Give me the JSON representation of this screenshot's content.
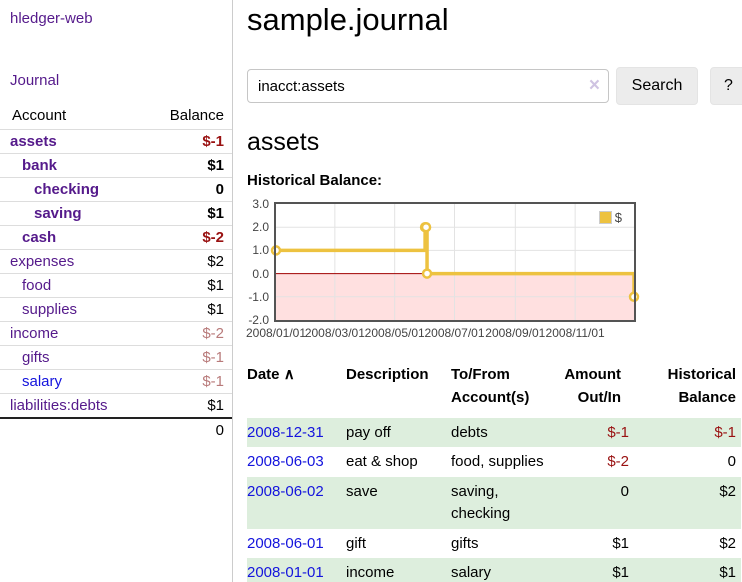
{
  "app": {
    "title": "hledger-web"
  },
  "colors": {
    "link_purple": "#551a8b",
    "link_blue": "#1414dd",
    "negative_strong": "#991111",
    "negative_soft": "#b87a7a",
    "row_stripe_green": "#ddeedd",
    "series_yellow": "#edc240"
  },
  "sidebar": {
    "journal_label": "Journal",
    "accounts_table": {
      "headers": {
        "account": "Account",
        "balance": "Balance"
      },
      "rows": [
        {
          "name": "assets",
          "balance": "$-1"
        },
        {
          "name": "bank",
          "balance": "$1"
        },
        {
          "name": "checking",
          "balance": "0"
        },
        {
          "name": "saving",
          "balance": "$1"
        },
        {
          "name": "cash",
          "balance": "$-2"
        },
        {
          "name": "expenses",
          "balance": "$2"
        },
        {
          "name": "food",
          "balance": "$1"
        },
        {
          "name": "supplies",
          "balance": "$1"
        },
        {
          "name": "income",
          "balance": "$-2"
        },
        {
          "name": "gifts",
          "balance": "$-1"
        },
        {
          "name": "salary",
          "balance": "$-1"
        },
        {
          "name": "liabilities:debts",
          "balance": "$1"
        }
      ],
      "total": "0"
    }
  },
  "main": {
    "title": "sample.journal",
    "search": {
      "value": "inacct:assets",
      "clear_icon": "×",
      "button_label": "Search",
      "help_label": "?"
    },
    "account_heading": "assets",
    "chart_heading": "Historical Balance:"
  },
  "chart_data": {
    "type": "line",
    "step": true,
    "title": "Historical Balance:",
    "series": [
      {
        "name": "$",
        "color": "#edc240",
        "points": [
          {
            "x": "2008-01-01",
            "y": 1
          },
          {
            "x": "2008-06-01",
            "y": 2
          },
          {
            "x": "2008-06-02",
            "y": 2
          },
          {
            "x": "2008-06-03",
            "y": 0
          },
          {
            "x": "2008-12-31",
            "y": -1
          }
        ]
      }
    ],
    "xlim": [
      "2008-01-01",
      "2008-12-31"
    ],
    "ylim": [
      -2,
      3
    ],
    "x_ticks": [
      "2008/01/01",
      "2008/03/01",
      "2008/05/01",
      "2008/07/01",
      "2008/09/01",
      "2008/11/01"
    ],
    "y_ticks": [
      3.0,
      2.0,
      1.0,
      0.0,
      -1.0,
      -2.0
    ],
    "grid": true,
    "legend_position": "top-right",
    "negative_region_color": "#ffe0e0",
    "zero_line_color": "#a00000"
  },
  "register_table": {
    "headers": {
      "date": "Date",
      "description": "Description",
      "account": "To/From\nAccount(s)",
      "amount": "Amount\nOut/In",
      "balance": "Historical\nBalance"
    },
    "sort_icon": "∧",
    "rows": [
      {
        "date": "2008-12-31",
        "description": "pay off",
        "accounts": "debts",
        "amount": "$-1",
        "balance": "$-1"
      },
      {
        "date": "2008-06-03",
        "description": "eat & shop",
        "accounts": "food, supplies",
        "amount": "$-2",
        "balance": "0"
      },
      {
        "date": "2008-06-02",
        "description": "save",
        "accounts": "saving,\nchecking",
        "amount": "0",
        "balance": "$2"
      },
      {
        "date": "2008-06-01",
        "description": "gift",
        "accounts": "gifts",
        "amount": "$1",
        "balance": "$2"
      },
      {
        "date": "2008-01-01",
        "description": "income",
        "accounts": "salary",
        "amount": "$1",
        "balance": "$1"
      }
    ]
  }
}
